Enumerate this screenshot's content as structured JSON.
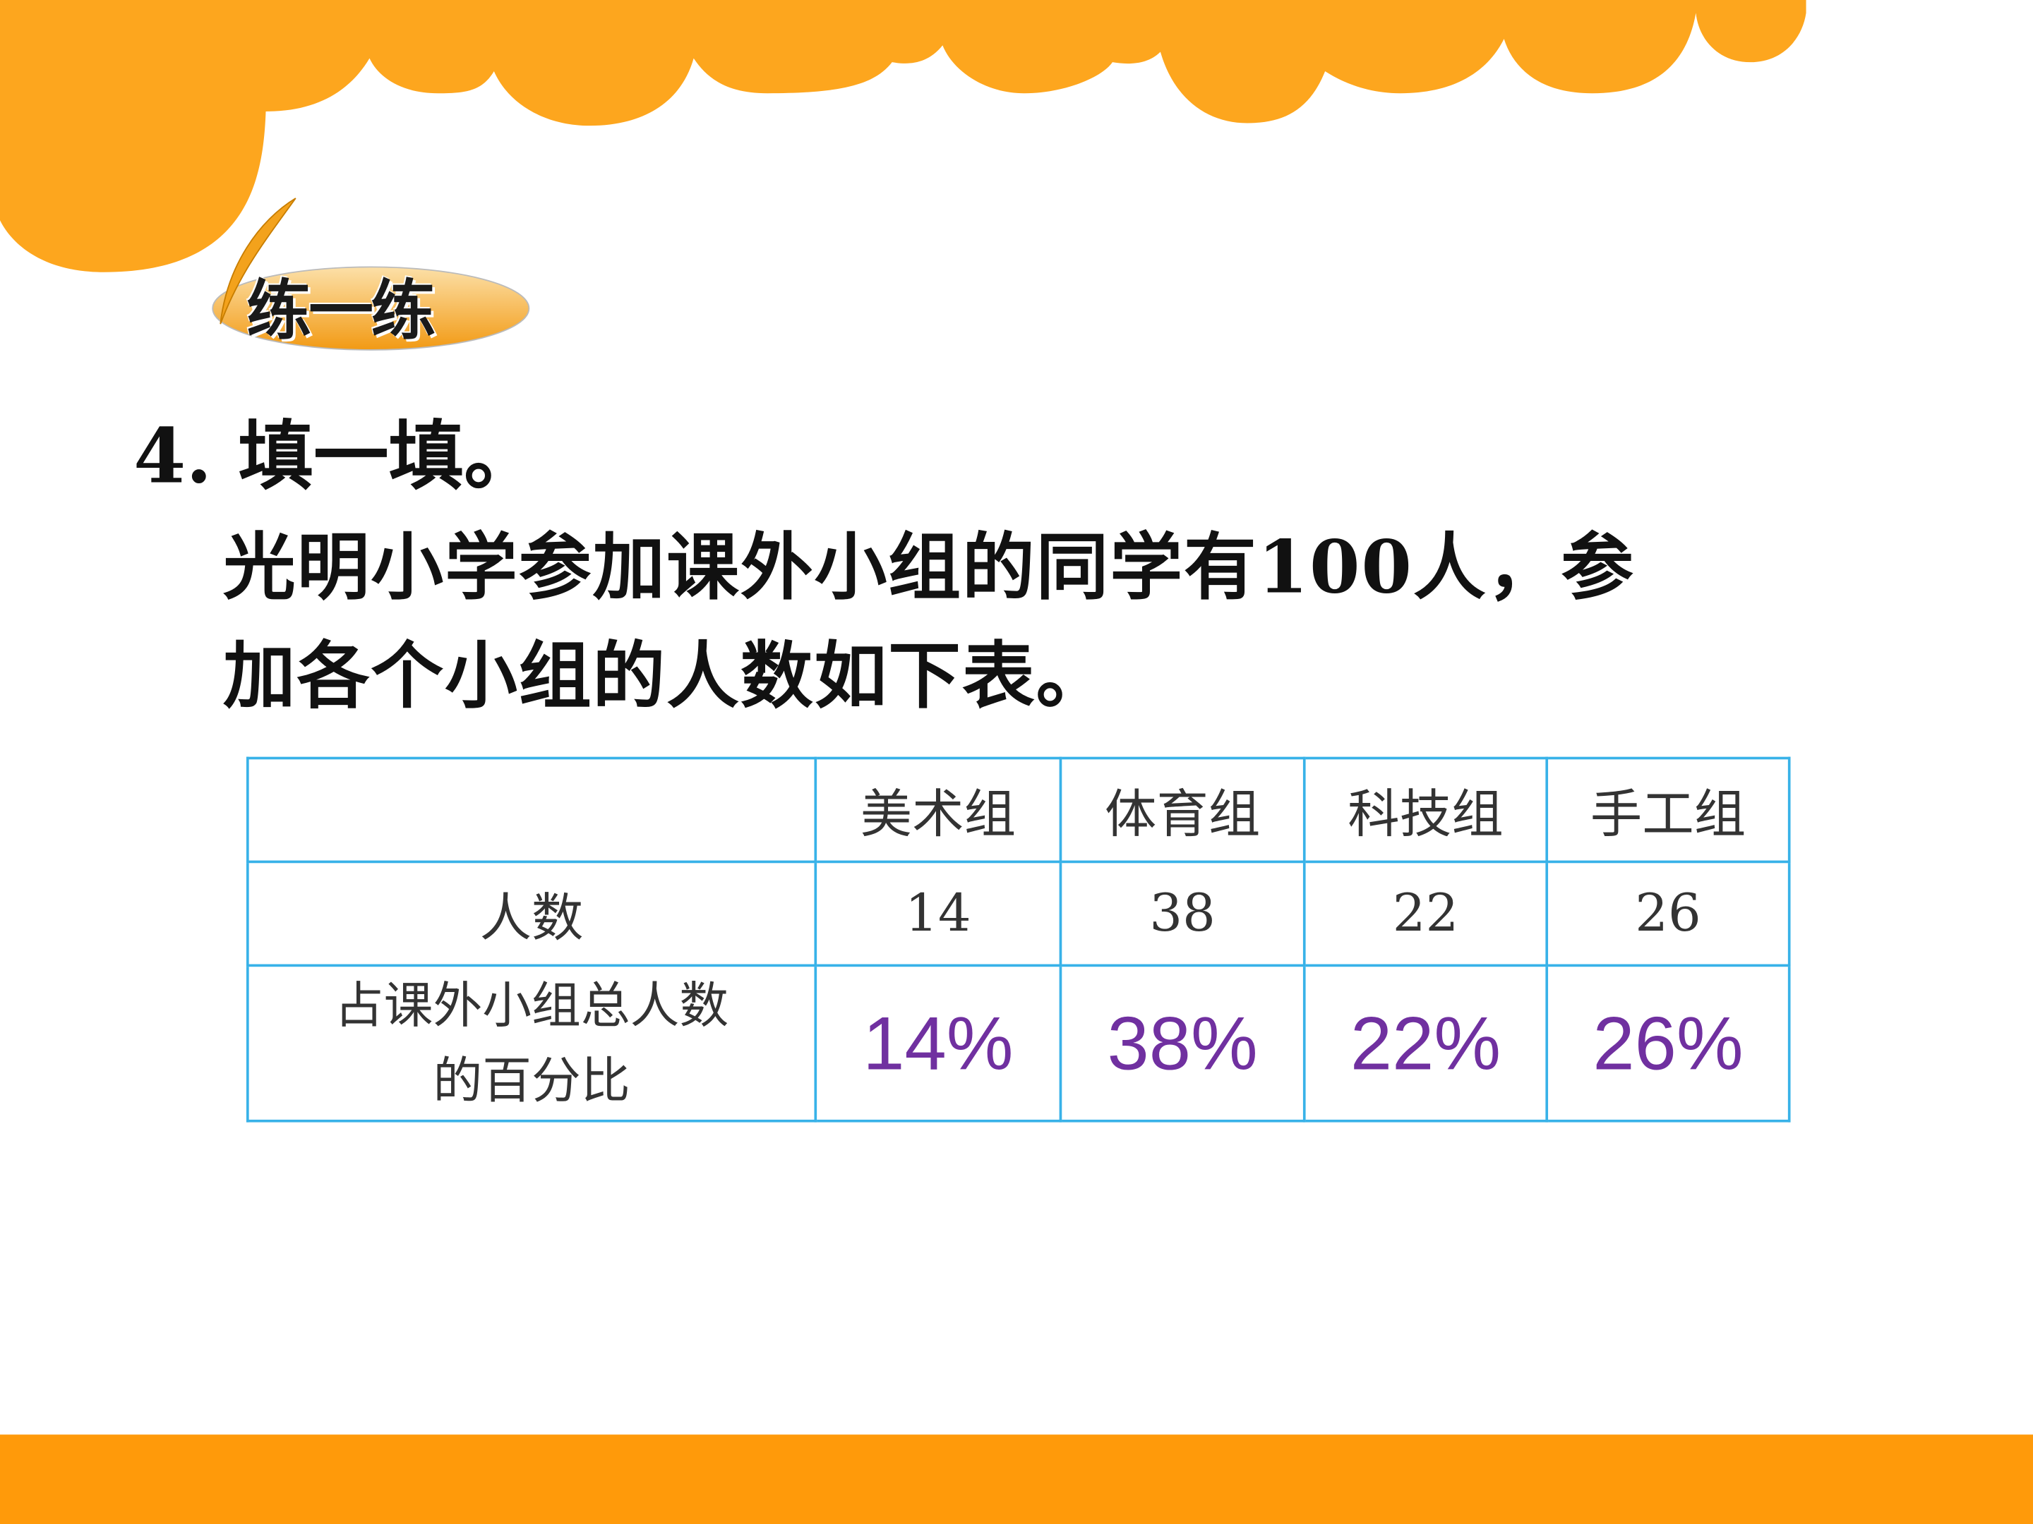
{
  "colors": {
    "top_wave": "#FDA61E",
    "bottom_bar": "#FF9A0A",
    "table_border": "#38B2E8",
    "answer": "#7030A0"
  },
  "badge": {
    "label": "练一练",
    "icon": "feather-icon"
  },
  "question": {
    "title": "4. 填一填。",
    "lines": [
      "光明小学参加课外小组的同学有100人，参",
      "加各个小组的人数如下表。"
    ]
  },
  "table": {
    "headers": [
      "",
      "美术组",
      "体育组",
      "科技组",
      "手工组"
    ],
    "rows": [
      {
        "label": "人数",
        "values": [
          "14",
          "38",
          "22",
          "26"
        ]
      },
      {
        "label_lines": [
          "占课外小组总人数",
          "的百分比"
        ],
        "values": [
          "14%",
          "38%",
          "22%",
          "26%"
        ]
      }
    ]
  }
}
